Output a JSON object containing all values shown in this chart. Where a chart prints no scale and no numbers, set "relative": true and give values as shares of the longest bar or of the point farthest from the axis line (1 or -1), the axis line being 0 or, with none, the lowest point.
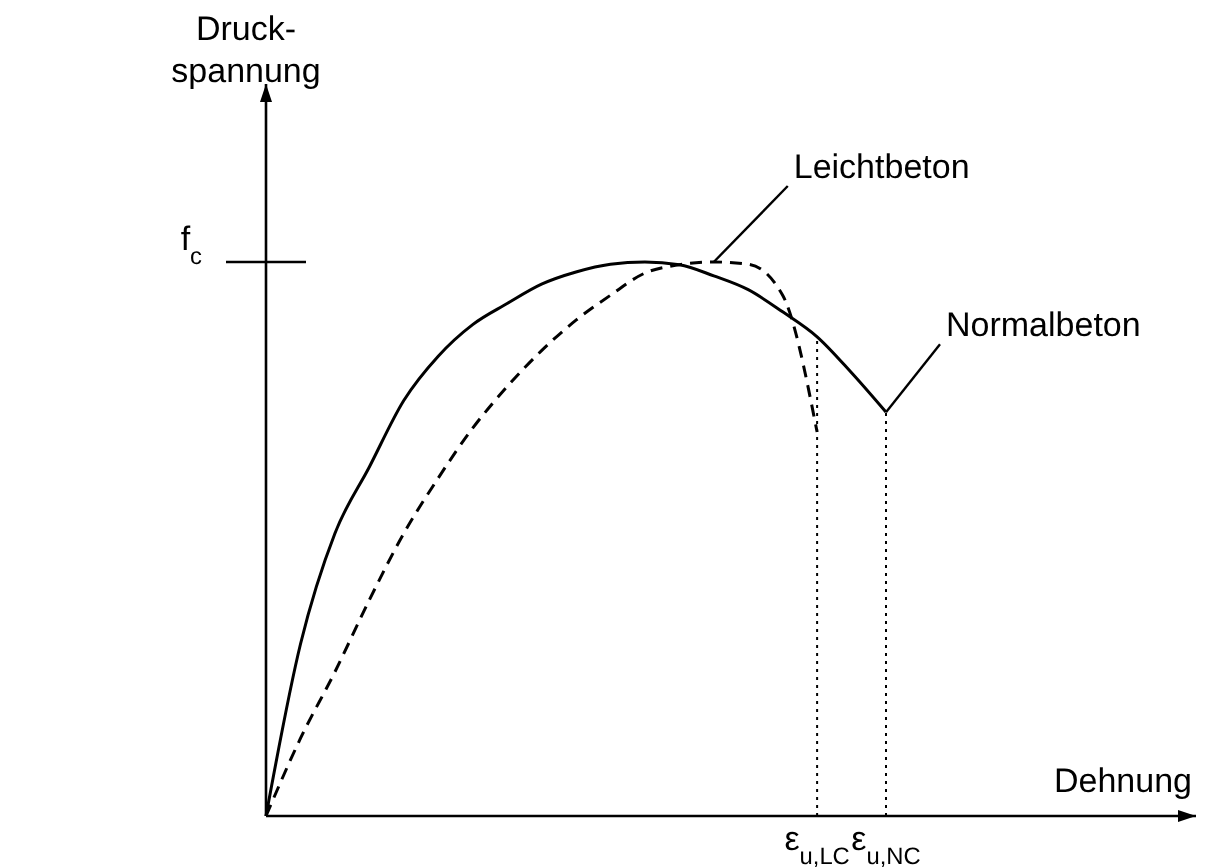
{
  "chart_data": {
    "type": "line",
    "relative": true,
    "xlabel": "Dehnung",
    "categories": [
      null,
      null,
      null,
      null,
      null,
      null,
      null,
      null,
      null,
      null,
      null,
      null,
      null,
      null,
      null,
      null,
      "ε$_{u,LC}$",
      null,
      "ε$_{u,NC}$",
      null,
      null,
      null,
      null,
      null,
      null,
      null,
      null,
      null
    ],
    "annotations": [
      "f$_{c}$",
      "Druck-\nspannung"
    ],
    "ref_lines": [
      {
        "axis": "x",
        "value": "ε$_{u,LC}$",
        "line_style": "dotted",
        "color": "#000000"
      },
      {
        "axis": "x",
        "value": "ε$_{u,NC}$",
        "line_style": "dotted",
        "color": "#000000"
      }
    ],
    "marker": "none",
    "series": [
      {
        "name": "Normalbeton",
        "color": "#000000",
        "line_style": "solid",
        "values": [
          0,
          0.31,
          0.51,
          0.63,
          0.75,
          0.83,
          0.887,
          0.925,
          0.96,
          0.982,
          0.996,
          1.0,
          0.995,
          0.975,
          0.95,
          0.91,
          0.865,
          0.8,
          0.729,
          null,
          null,
          null,
          null,
          null,
          null,
          null,
          null,
          null
        ]
      },
      {
        "name": "Leichtbeton",
        "color": "#000000",
        "line_style": "dashed",
        "values": [
          0,
          0.14,
          0.26,
          0.39,
          0.51,
          0.61,
          0.7,
          0.775,
          0.84,
          0.895,
          0.94,
          0.98,
          0.995,
          1.0,
          0.996,
          0.94,
          0.693,
          null,
          null,
          null,
          null,
          null,
          null,
          null,
          null,
          null,
          null,
          null
        ]
      }
    ]
  }
}
